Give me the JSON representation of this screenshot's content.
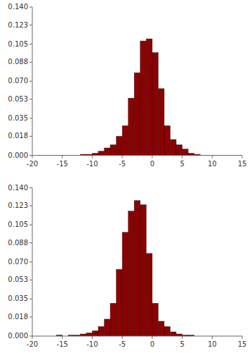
{
  "chart_data": [
    {
      "type": "histogram",
      "bins": [
        -12,
        -11,
        -10,
        -9,
        -8,
        -7,
        -6,
        -5,
        -4,
        -3,
        -2,
        -1,
        0,
        1,
        2,
        3,
        4,
        5,
        6,
        7,
        8,
        9,
        10,
        11,
        12
      ],
      "values": [
        0.001,
        0.001,
        0.002,
        0.004,
        0.007,
        0.01,
        0.018,
        0.028,
        0.054,
        0.078,
        0.108,
        0.11,
        0.097,
        0.063,
        0.028,
        0.015,
        0.01,
        0.006,
        0.002,
        0.001,
        0.0,
        0.0,
        0.0,
        0.0
      ],
      "color": "#8B0000",
      "xlim": [
        -20,
        15
      ],
      "ylim": [
        0,
        0.14
      ],
      "xticks": [
        -20,
        -15,
        -10,
        -5,
        0,
        5,
        10,
        15
      ],
      "yticks": [
        {
          "value": 0,
          "label": "0.000"
        },
        0.018,
        0.035,
        0.053,
        {
          "value": 0.07,
          "label": "0.070"
        },
        0.088,
        0.105,
        0.123,
        {
          "value": 0.14,
          "label": "0.140"
        }
      ],
      "grid": false
    },
    {
      "type": "histogram",
      "bins": [
        -16,
        -15,
        -14,
        -13,
        -12,
        -11,
        -10,
        -9,
        -8,
        -7,
        -6,
        -5,
        -4,
        -3,
        -2,
        -1,
        0,
        1,
        2,
        3,
        4,
        5,
        6,
        7,
        8
      ],
      "values": [
        0.001,
        0.0,
        0.001,
        0.001,
        0.002,
        0.003,
        0.005,
        0.009,
        0.016,
        0.031,
        0.063,
        0.098,
        0.118,
        0.128,
        0.124,
        0.078,
        0.031,
        0.014,
        0.009,
        0.004,
        0.002,
        0.001,
        0.001,
        0.0
      ],
      "color": "#8B0000",
      "xlim": [
        -20,
        15
      ],
      "ylim": [
        0,
        0.14
      ],
      "xticks": [
        -20,
        -15,
        -10,
        -5,
        0,
        5,
        10,
        15
      ],
      "yticks": [
        {
          "value": 0,
          "label": "0.000"
        },
        0.018,
        0.035,
        0.053,
        {
          "value": 0.07,
          "label": "0.070"
        },
        0.088,
        0.105,
        0.123,
        {
          "value": 0.14,
          "label": "0.140"
        }
      ],
      "grid": false
    }
  ]
}
